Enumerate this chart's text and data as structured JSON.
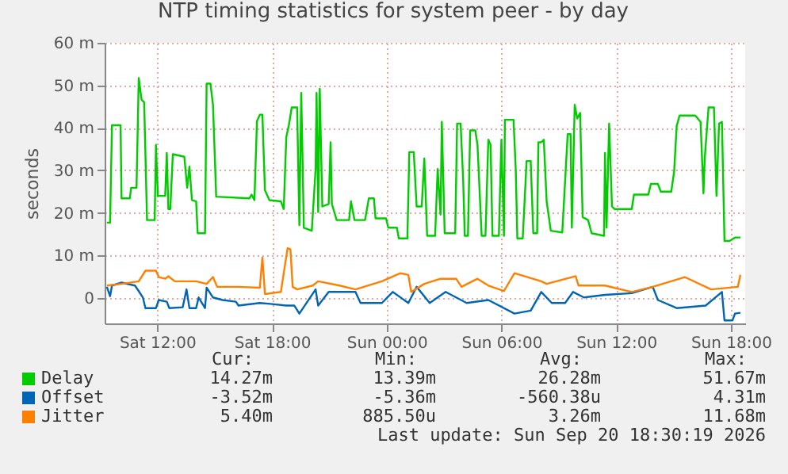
{
  "chart_data": {
    "type": "line",
    "title": "NTP timing statistics for system peer - by day",
    "ylabel": "seconds",
    "xlim": [
      "2026-09-19T09:15",
      "2026-09-20T18:45"
    ],
    "xticks": [
      {
        "value": "2026-09-19T12:00",
        "label": "Sat 12:00"
      },
      {
        "value": "2026-09-19T18:00",
        "label": "Sat 18:00"
      },
      {
        "value": "2026-09-20T00:00",
        "label": "Sun 00:00"
      },
      {
        "value": "2026-09-20T06:00",
        "label": "Sun 06:00"
      },
      {
        "value": "2026-09-20T12:00",
        "label": "Sun 12:00"
      },
      {
        "value": "2026-09-20T18:00",
        "label": "Sun 18:00"
      }
    ],
    "ylim": [
      -6,
      60
    ],
    "yticks": [
      0,
      {
        "value": 10,
        "label": "10 m"
      },
      {
        "value": 20,
        "label": "20 m"
      },
      {
        "value": 30,
        "label": "30 m"
      },
      {
        "value": 40,
        "label": "40 m"
      },
      {
        "value": 50,
        "label": "50 m"
      },
      {
        "value": 60,
        "label": "60 m"
      }
    ],
    "grid": true,
    "legend": "bottom",
    "series": [
      {
        "name": "Delay",
        "color": "#00cc00",
        "x": [
          "2026-09-19T09:22",
          "2026-09-19T09:32",
          "2026-09-19T09:38",
          "2026-09-19T10:05",
          "2026-09-19T10:08",
          "2026-09-19T10:34",
          "2026-09-19T10:38",
          "2026-09-19T10:55",
          "2026-09-19T11:02",
          "2026-09-19T11:11",
          "2026-09-19T11:19",
          "2026-09-19T11:28",
          "2026-09-19T11:52",
          "2026-09-19T11:56",
          "2026-09-19T12:02",
          "2026-09-19T12:25",
          "2026-09-19T12:30",
          "2026-09-19T12:35",
          "2026-09-19T12:41",
          "2026-09-19T12:49",
          "2026-09-19T13:25",
          "2026-09-19T13:34",
          "2026-09-19T13:41",
          "2026-09-19T13:49",
          "2026-09-19T14:02",
          "2026-09-19T14:07",
          "2026-09-19T14:30",
          "2026-09-19T14:35",
          "2026-09-19T14:47",
          "2026-09-19T14:55",
          "2026-09-19T15:05",
          "2026-09-19T16:49",
          "2026-09-19T16:56",
          "2026-09-19T17:05",
          "2026-09-19T17:13",
          "2026-09-19T17:22",
          "2026-09-19T17:30",
          "2026-09-19T17:38",
          "2026-09-19T17:52",
          "2026-09-19T18:28",
          "2026-09-19T18:37",
          "2026-09-19T18:45",
          "2026-09-19T18:53",
          "2026-09-19T19:02",
          "2026-09-19T19:19",
          "2026-09-19T19:26",
          "2026-09-19T19:32",
          "2026-09-19T19:40",
          "2026-09-19T20:05",
          "2026-09-19T20:17",
          "2026-09-19T20:20",
          "2026-09-19T20:25",
          "2026-09-19T20:30",
          "2026-09-19T20:38",
          "2026-09-19T20:58",
          "2026-09-19T21:04",
          "2026-09-19T21:08",
          "2026-09-19T21:23",
          "2026-09-19T22:02",
          "2026-09-19T22:08",
          "2026-09-19T22:19",
          "2026-09-19T22:52",
          "2026-09-19T23:04",
          "2026-09-19T23:20",
          "2026-09-19T23:25",
          "2026-09-19T23:58",
          "2026-09-20T00:05",
          "2026-09-20T00:32",
          "2026-09-20T00:38",
          "2026-09-20T01:05",
          "2026-09-20T01:11",
          "2026-09-20T01:25",
          "2026-09-20T01:34",
          "2026-09-20T01:50",
          "2026-09-20T01:58",
          "2026-09-20T02:07",
          "2026-09-20T02:32",
          "2026-09-20T02:40",
          "2026-09-20T02:49",
          "2026-09-20T02:53",
          "2026-09-20T03:02",
          "2026-09-20T03:35",
          "2026-09-20T03:41",
          "2026-09-20T03:52",
          "2026-09-20T04:00",
          "2026-09-20T04:05",
          "2026-09-20T04:15",
          "2026-09-20T04:22",
          "2026-09-20T04:38",
          "2026-09-20T04:45",
          "2026-09-20T04:58",
          "2026-09-20T05:10",
          "2026-09-20T05:19",
          "2026-09-20T05:26",
          "2026-09-20T05:32",
          "2026-09-20T05:52",
          "2026-09-20T06:00",
          "2026-09-20T06:08",
          "2026-09-20T06:11",
          "2026-09-20T06:38",
          "2026-09-20T06:45",
          "2026-09-20T06:50",
          "2026-09-20T07:07",
          "2026-09-20T07:19",
          "2026-09-20T07:32",
          "2026-09-20T07:40",
          "2026-09-20T07:52",
          "2026-09-20T07:56",
          "2026-09-20T08:05",
          "2026-09-20T08:13",
          "2026-09-20T08:22",
          "2026-09-20T08:35",
          "2026-09-20T09:11",
          "2026-09-20T09:28",
          "2026-09-20T09:37",
          "2026-09-20T09:41",
          "2026-09-20T09:50",
          "2026-09-20T09:58",
          "2026-09-20T10:07",
          "2026-09-20T10:15",
          "2026-09-20T10:32",
          "2026-09-20T10:43",
          "2026-09-20T11:22",
          "2026-09-20T11:25",
          "2026-09-20T11:30",
          "2026-09-20T11:38",
          "2026-09-20T11:47",
          "2026-09-20T11:55",
          "2026-09-20T12:49",
          "2026-09-20T12:56",
          "2026-09-20T13:41",
          "2026-09-20T13:49",
          "2026-09-20T14:11",
          "2026-09-20T14:20",
          "2026-09-20T14:53",
          "2026-09-20T15:02",
          "2026-09-20T15:10",
          "2026-09-20T15:19",
          "2026-09-20T16:08",
          "2026-09-20T16:25",
          "2026-09-20T16:34",
          "2026-09-20T16:38",
          "2026-09-20T16:50",
          "2026-09-20T17:07",
          "2026-09-20T17:15",
          "2026-09-20T17:23",
          "2026-09-20T17:32",
          "2026-09-20T17:40",
          "2026-09-20T17:56",
          "2026-09-20T18:13",
          "2026-09-20T18:30"
        ],
        "values": [
          17.7,
          17.7,
          40.6,
          40.6,
          23.4,
          23.4,
          25.9,
          25.9,
          51.7,
          46.6,
          46,
          18.3,
          18.3,
          36,
          24,
          24,
          34.1,
          20.9,
          20.9,
          33.8,
          33.2,
          25.9,
          30.9,
          23,
          22.7,
          15.2,
          15.2,
          50.4,
          50.4,
          45.4,
          23.8,
          23.4,
          24.3,
          23,
          41.6,
          43.1,
          43.1,
          25.3,
          23,
          22.7,
          20.9,
          37.8,
          40.6,
          44.8,
          44.8,
          17.1,
          48.2,
          16.5,
          15.8,
          30.3,
          48.2,
          20.2,
          49.2,
          21.5,
          22.1,
          36.6,
          22.1,
          18.3,
          18.3,
          22.7,
          18.3,
          18.3,
          23.4,
          23.4,
          18.7,
          18.7,
          16.5,
          16.5,
          14,
          14,
          34.3,
          34.3,
          21.5,
          21.5,
          32.8,
          14.6,
          14.6,
          30.3,
          19.6,
          41.4,
          15.2,
          15.2,
          41,
          41,
          27.8,
          14.6,
          14.6,
          39.4,
          39.4,
          36,
          14.6,
          14.6,
          37.2,
          36,
          14.6,
          14.6,
          37.2,
          14.6,
          41.9,
          41.9,
          30.3,
          14,
          14,
          32.2,
          32.2,
          15.2,
          15.2,
          36.6,
          36.6,
          37.2,
          22.7,
          15.8,
          15.4,
          38.5,
          38.5,
          16.5,
          45.4,
          42.2,
          43.5,
          19,
          18.3,
          15.2,
          14.6,
          34.1,
          16.5,
          41,
          21.5,
          20.9,
          20.9,
          24.3,
          24.3,
          26.8,
          26.8,
          25,
          25,
          29.7,
          40.4,
          42.9,
          42.9,
          41.4,
          24.6,
          32.8,
          44.8,
          44.8,
          24,
          41,
          41.4,
          13.4,
          13.4,
          14.2,
          14.2
        ]
      },
      {
        "name": "Offset",
        "color": "#0066b3",
        "x": [
          "2026-09-19T09:22",
          "2026-09-19T09:32",
          "2026-09-19T09:38",
          "2026-09-19T10:08",
          "2026-09-19T10:50",
          "2026-09-19T11:02",
          "2026-09-19T11:15",
          "2026-09-19T11:23",
          "2026-09-19T11:56",
          "2026-09-19T12:05",
          "2026-09-19T12:30",
          "2026-09-19T12:38",
          "2026-09-19T13:20",
          "2026-09-19T13:32",
          "2026-09-19T13:41",
          "2026-09-19T14:02",
          "2026-09-19T14:10",
          "2026-09-19T14:30",
          "2026-09-19T14:35",
          "2026-09-19T14:55",
          "2026-09-19T15:25",
          "2026-09-19T16:07",
          "2026-09-19T16:15",
          "2026-09-19T17:22",
          "2026-09-19T17:55",
          "2026-09-19T18:45",
          "2026-09-19T19:10",
          "2026-09-19T19:26",
          "2026-09-19T20:17",
          "2026-09-19T20:25",
          "2026-09-19T20:58",
          "2026-09-19T22:22",
          "2026-09-19T22:38",
          "2026-09-19T23:45",
          "2026-09-20T00:19",
          "2026-09-20T01:08",
          "2026-09-20T01:34",
          "2026-09-20T02:15",
          "2026-09-20T03:05",
          "2026-09-20T04:11",
          "2026-09-20T05:19",
          "2026-09-20T06:41",
          "2026-09-20T07:32",
          "2026-09-20T08:05",
          "2026-09-20T08:38",
          "2026-09-20T09:20",
          "2026-09-20T09:45",
          "2026-09-20T10:19",
          "2026-09-20T11:25",
          "2026-09-20T12:49",
          "2026-09-20T13:55",
          "2026-09-20T14:11",
          "2026-09-20T15:10",
          "2026-09-20T16:41",
          "2026-09-20T17:32",
          "2026-09-20T17:40",
          "2026-09-20T18:05",
          "2026-09-20T18:13",
          "2026-09-20T18:30"
        ],
        "values": [
          2.6,
          0.4,
          2.9,
          3.6,
          2.9,
          1.6,
          0.1,
          -2.4,
          -2.4,
          -0.5,
          -0.9,
          -2.4,
          -2.2,
          2,
          -2.4,
          -2.4,
          0.1,
          -2.4,
          2.4,
          0.1,
          -0.5,
          -0.9,
          -1.8,
          -1.2,
          -1.4,
          -1.8,
          -1.8,
          -3.7,
          2,
          -1.8,
          1.4,
          1.4,
          -1.2,
          -1.2,
          1.4,
          -1.2,
          2.6,
          -1.2,
          1.4,
          -1.2,
          -0.5,
          -3.7,
          -3,
          1.4,
          -1.2,
          -1.2,
          1.4,
          0.1,
          0.7,
          1.1,
          2.6,
          -0.5,
          -2.4,
          -1.8,
          1.4,
          -5.3,
          -5.3,
          -3.7,
          -3.5
        ]
      },
      {
        "name": "Jitter",
        "color": "#ff8000",
        "x": [
          "2026-09-19T09:22",
          "2026-09-19T10:08",
          "2026-09-19T11:02",
          "2026-09-19T11:23",
          "2026-09-19T11:56",
          "2026-09-19T12:05",
          "2026-09-19T12:25",
          "2026-09-19T12:35",
          "2026-09-19T12:55",
          "2026-09-19T14:02",
          "2026-09-19T14:35",
          "2026-09-19T14:55",
          "2026-09-19T15:08",
          "2026-09-19T16:15",
          "2026-09-19T17:22",
          "2026-09-19T17:30",
          "2026-09-19T17:38",
          "2026-09-19T18:28",
          "2026-09-19T18:49",
          "2026-09-19T18:58",
          "2026-09-19T19:05",
          "2026-09-19T19:19",
          "2026-09-19T20:08",
          "2026-09-19T20:25",
          "2026-09-19T21:32",
          "2026-09-19T22:22",
          "2026-09-19T23:45",
          "2026-09-20T00:43",
          "2026-09-20T01:08",
          "2026-09-20T01:17",
          "2026-09-20T01:58",
          "2026-09-20T02:49",
          "2026-09-20T03:38",
          "2026-09-20T03:55",
          "2026-09-20T04:45",
          "2026-09-20T05:19",
          "2026-09-20T06:08",
          "2026-09-20T06:41",
          "2026-09-20T08:05",
          "2026-09-20T08:22",
          "2026-09-20T09:53",
          "2026-09-20T10:02",
          "2026-09-20T11:25",
          "2026-09-20T12:49",
          "2026-09-20T13:55",
          "2026-09-20T15:19",
          "2026-09-20T15:35",
          "2026-09-20T16:58",
          "2026-09-20T18:22",
          "2026-09-20T18:30"
        ],
        "values": [
          2.9,
          3.3,
          3.9,
          6.4,
          6.4,
          4.9,
          4.5,
          5.1,
          3.9,
          3.9,
          3.3,
          4.9,
          2.6,
          2.6,
          2.4,
          9.5,
          0.9,
          1.4,
          11.7,
          11.4,
          2.6,
          2,
          2.9,
          3.9,
          2.9,
          2,
          3.9,
          5.8,
          5.4,
          1.4,
          3.3,
          4.5,
          4.5,
          2.6,
          4.5,
          2.9,
          1.6,
          5.8,
          3.9,
          3.3,
          5.1,
          2.9,
          2.9,
          1.4,
          2.6,
          4.5,
          4.9,
          2,
          2.6,
          5.4
        ]
      }
    ],
    "annotations": [
      "Cur:",
      "Min:",
      "Avg:",
      "Max:",
      "14.27m",
      "13.39m",
      "26.28m",
      "51.67m",
      "-3.52m",
      "-5.36m",
      "-560.38u",
      "4.31m",
      "5.40m",
      "885.50u",
      "3.26m",
      "11.68m",
      "Last update: Sun Sep 20 18:30:19 2026"
    ]
  }
}
